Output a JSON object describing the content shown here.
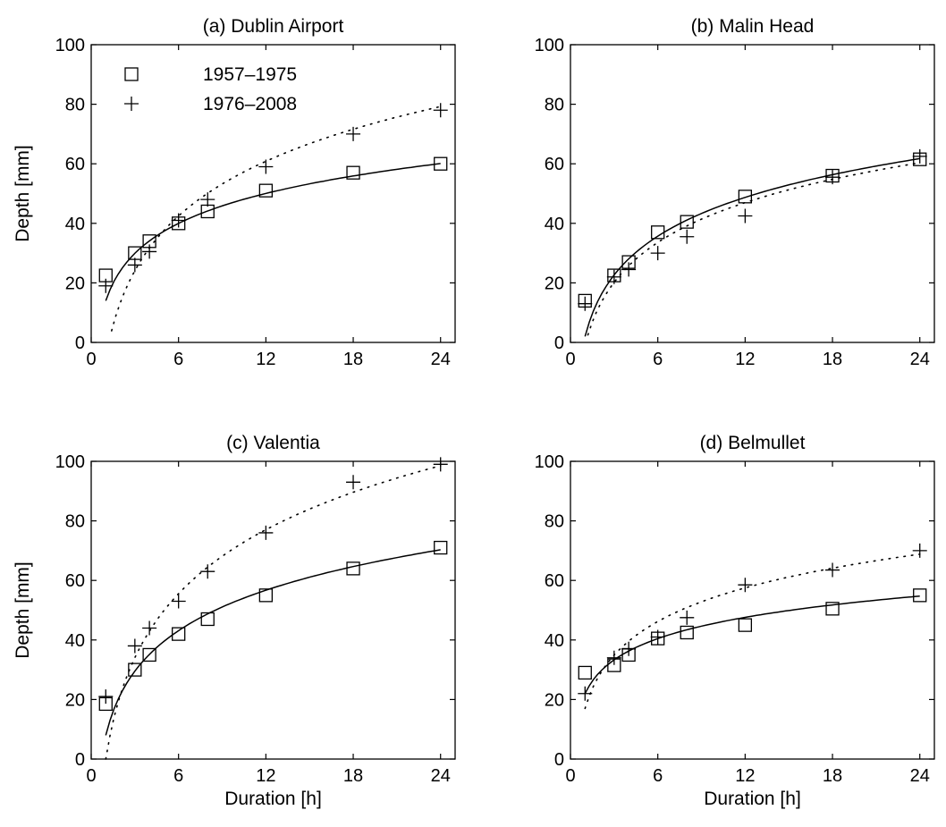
{
  "chart_data": [
    {
      "type": "scatter",
      "title": "(a) Dublin Airport",
      "xlabel": "",
      "ylabel": "Depth [mm]",
      "xlim": [
        0,
        25
      ],
      "ylim": [
        0,
        100
      ],
      "xticks": [
        0,
        6,
        12,
        18,
        24
      ],
      "yticks": [
        0,
        20,
        40,
        60,
        80,
        100
      ],
      "grid": false,
      "legend": "top-left",
      "series": [
        {
          "name": "1957–1975",
          "marker": "square",
          "x": [
            1,
            3,
            4,
            6,
            8,
            12,
            18,
            24
          ],
          "y": [
            22.5,
            30,
            34,
            40,
            44,
            51,
            57,
            60
          ],
          "fit": "solid",
          "fit_range": [
            1,
            24
          ],
          "fit_a": 14,
          "fit_b": 14.5
        },
        {
          "name": "1976–2008",
          "marker": "plus",
          "x": [
            1,
            3,
            4,
            6,
            8,
            12,
            18,
            24
          ],
          "y": [
            19,
            26,
            30.5,
            41,
            48,
            59,
            70,
            78
          ],
          "fit": "dotted",
          "fit_range": [
            1.4,
            24
          ],
          "fit_a": -5,
          "fit_b": 26.5
        }
      ]
    },
    {
      "type": "scatter",
      "title": "(b) Malin Head",
      "xlabel": "",
      "ylabel": "",
      "xlim": [
        0,
        25
      ],
      "ylim": [
        0,
        100
      ],
      "xticks": [
        0,
        6,
        12,
        18,
        24
      ],
      "yticks": [
        0,
        20,
        40,
        60,
        80,
        100
      ],
      "grid": false,
      "legend": "",
      "series": [
        {
          "name": "",
          "marker": "square",
          "x": [
            1,
            3,
            4,
            6,
            8,
            12,
            18,
            24
          ],
          "y": [
            14,
            22.5,
            27,
            37,
            40.5,
            49,
            56,
            61.5
          ],
          "fit": "solid",
          "fit_range": [
            1,
            24
          ],
          "fit_a": 2,
          "fit_b": 18.8
        },
        {
          "name": "",
          "marker": "plus",
          "x": [
            1,
            3,
            4,
            6,
            8,
            12,
            18,
            24
          ],
          "y": [
            13,
            22,
            24.5,
            30,
            35.5,
            42.5,
            55.5,
            62.5
          ],
          "fit": "dotted",
          "fit_range": [
            1.2,
            24
          ],
          "fit_a": -1,
          "fit_b": 19.3
        }
      ]
    },
    {
      "type": "scatter",
      "title": "(c) Valentia",
      "xlabel": "Duration [h]",
      "ylabel": "Depth [mm]",
      "xlim": [
        0,
        25
      ],
      "ylim": [
        0,
        100
      ],
      "xticks": [
        0,
        6,
        12,
        18,
        24
      ],
      "yticks": [
        0,
        20,
        40,
        60,
        80,
        100
      ],
      "grid": false,
      "legend": "",
      "series": [
        {
          "name": "",
          "marker": "square",
          "x": [
            1,
            3,
            4,
            6,
            8,
            12,
            18,
            24
          ],
          "y": [
            18.5,
            30,
            35,
            42,
            47,
            55,
            64,
            71
          ],
          "fit": "solid",
          "fit_range": [
            1,
            24
          ],
          "fit_a": 8,
          "fit_b": 19.6
        },
        {
          "name": "",
          "marker": "plus",
          "x": [
            1,
            3,
            4,
            6,
            8,
            12,
            18,
            24
          ],
          "y": [
            21,
            38,
            44,
            53,
            63,
            76,
            93,
            99
          ],
          "fit": "dotted",
          "fit_range": [
            1,
            24
          ],
          "fit_a": 0,
          "fit_b": 31
        }
      ]
    },
    {
      "type": "scatter",
      "title": "(d) Belmullet",
      "xlabel": "Duration [h]",
      "ylabel": "",
      "xlim": [
        0,
        25
      ],
      "ylim": [
        0,
        100
      ],
      "xticks": [
        0,
        6,
        12,
        18,
        24
      ],
      "yticks": [
        0,
        20,
        40,
        60,
        80,
        100
      ],
      "grid": false,
      "legend": "",
      "series": [
        {
          "name": "",
          "marker": "square",
          "x": [
            1,
            3,
            4,
            6,
            8,
            12,
            18,
            24
          ],
          "y": [
            29,
            31.5,
            35,
            40.5,
            42.5,
            45,
            50.5,
            55
          ],
          "fit": "solid",
          "fit_range": [
            1,
            24
          ],
          "fit_a": 22,
          "fit_b": 10.3
        },
        {
          "name": "",
          "marker": "plus",
          "x": [
            1,
            3,
            4,
            6,
            8,
            12,
            18,
            24
          ],
          "y": [
            22,
            34,
            37,
            41,
            47.5,
            58.5,
            63.5,
            70
          ],
          "fit": "dotted",
          "fit_range": [
            1,
            24
          ],
          "fit_a": 17,
          "fit_b": 16.3
        }
      ]
    }
  ]
}
